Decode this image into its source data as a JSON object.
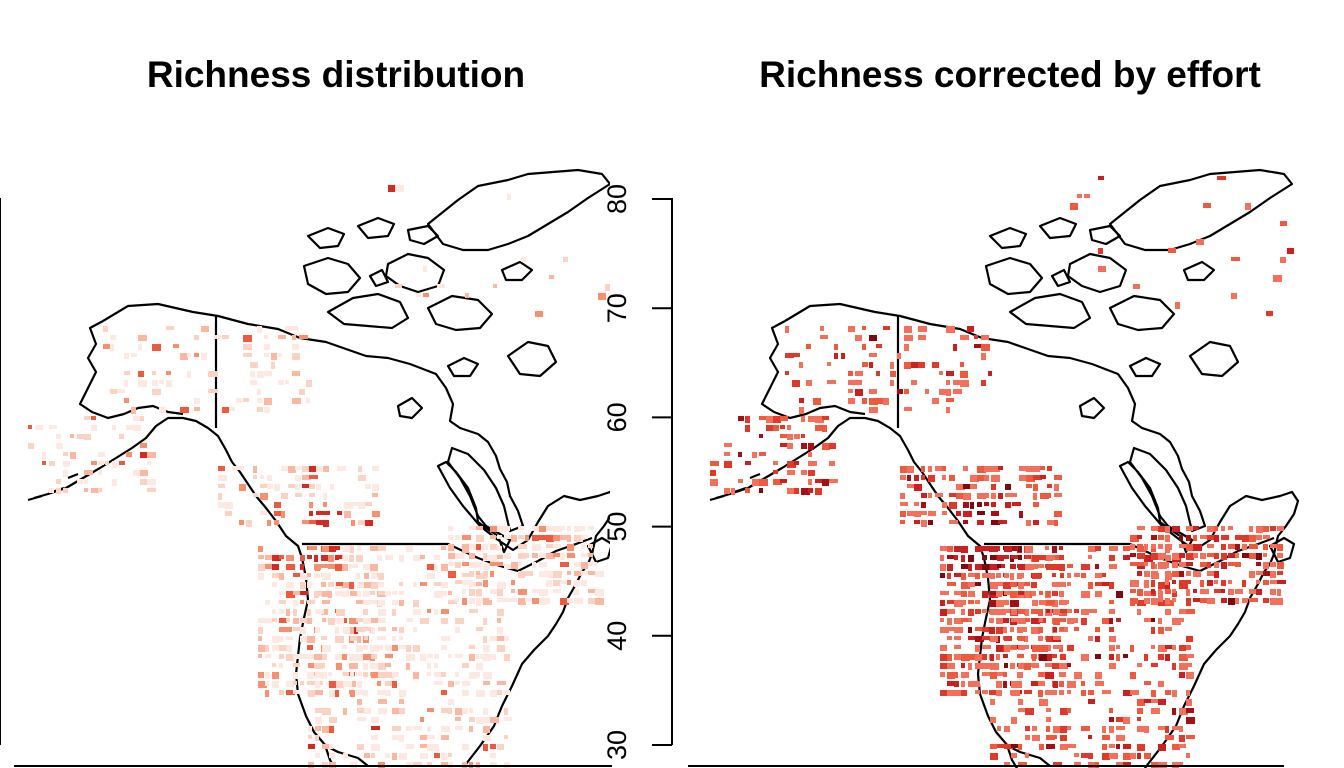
{
  "panels": [
    {
      "title": "Richness distribution",
      "palette": [
        "#fde9e2",
        "#fcd3c3",
        "#fbb79f",
        "#f8906f",
        "#ef5a3f",
        "#d52a22"
      ]
    },
    {
      "title": "Richness corrected by effort",
      "palette": [
        "#f4705a",
        "#ef5a3f",
        "#e2382a",
        "#cc1f1f",
        "#a50f15",
        "#7d0a10"
      ]
    }
  ],
  "latitude_axis": {
    "ticks": [
      "30",
      "40",
      "50",
      "60",
      "70",
      "80"
    ],
    "range": [
      30,
      80
    ]
  },
  "colors": {
    "land_outline": "#000000",
    "background": "#ffffff",
    "low_richness": "#fde9e2",
    "high_richness": "#7d0a10"
  }
}
